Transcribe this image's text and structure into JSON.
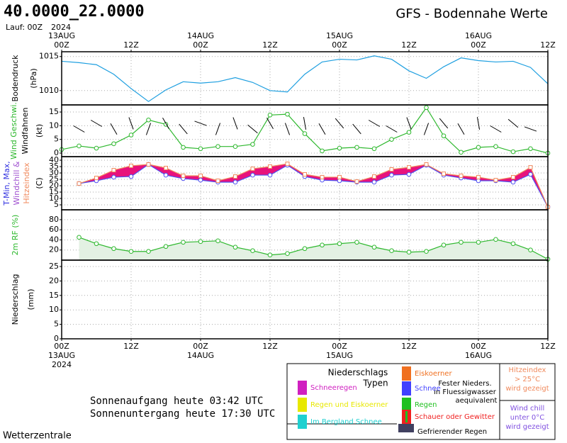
{
  "header": {
    "title": "40.0000_22.0000",
    "run": "Lauf: 00Z",
    "year": "2024",
    "subtitle": "GFS - Bodennahe Werte"
  },
  "chart_data": [
    {
      "type": "line",
      "ylabel": [
        "Bodendruck",
        "(hPa)"
      ],
      "x": [
        0,
        3,
        6,
        9,
        12,
        15,
        18,
        21,
        24,
        27,
        30,
        33,
        36,
        39,
        42,
        45,
        48,
        51,
        54,
        57,
        60,
        63,
        66,
        69,
        72,
        75,
        78,
        81,
        84
      ],
      "values": [
        1014.3,
        1014.1,
        1013.8,
        1012.4,
        1010.3,
        1008.4,
        1010.1,
        1011.3,
        1011.1,
        1011.3,
        1011.9,
        1011.2,
        1010.0,
        1009.8,
        1012.4,
        1014.2,
        1014.6,
        1014.5,
        1015.1,
        1014.6,
        1012.9,
        1011.8,
        1013.5,
        1014.8,
        1014.4,
        1014.2,
        1014.3,
        1013.4,
        1011.0
      ],
      "color": "#1e9fe0",
      "ylim": [
        1007.9,
        1015.7
      ],
      "yticks": [
        1010,
        1015
      ],
      "xlim": [
        0,
        84
      ],
      "xticks": [
        {
          "value": 0,
          "label": "00Z"
        },
        {
          "value": 12,
          "label": "12Z"
        },
        {
          "value": 24,
          "label": "00Z"
        },
        {
          "value": 36,
          "label": "12Z"
        },
        {
          "value": 48,
          "label": "00Z"
        },
        {
          "value": 60,
          "label": "12Z"
        },
        {
          "value": 72,
          "label": "00Z"
        },
        {
          "value": 84,
          "label": "12Z"
        }
      ],
      "xdates": [
        {
          "value": 0,
          "label": "13AUG"
        },
        {
          "value": 24,
          "label": "14AUG"
        },
        {
          "value": 48,
          "label": "15AUG"
        },
        {
          "value": 72,
          "label": "16AUG"
        }
      ],
      "grid": true
    },
    {
      "type": "line",
      "ylabel": [
        "Wind Geschwi.",
        "Windfahnen",
        "(kt)"
      ],
      "x": [
        0,
        3,
        6,
        9,
        12,
        15,
        18,
        21,
        24,
        27,
        30,
        33,
        36,
        39,
        42,
        45,
        48,
        51,
        54,
        57,
        60,
        63,
        66,
        69,
        72,
        75,
        78,
        81,
        84
      ],
      "values": [
        1.3,
        2.6,
        1.8,
        3.4,
        6.6,
        12.1,
        10.5,
        2.1,
        1.6,
        2.4,
        2.4,
        3.2,
        13.9,
        14.2,
        7.1,
        0.8,
        1.8,
        2.1,
        1.6,
        5.0,
        7.6,
        16.6,
        6.3,
        0.3,
        2.1,
        2.4,
        0.5,
        1.6,
        0
      ],
      "directions": [
        null,
        300,
        300,
        330,
        340,
        20,
        330,
        320,
        290,
        20,
        340,
        310,
        330,
        340,
        350,
        330,
        320,
        320,
        300,
        300,
        340,
        20,
        320,
        330,
        350,
        300,
        310,
        290,
        null
      ],
      "color": "#2eb82e",
      "ylim": [
        -1.3,
        17.6
      ],
      "yticks": [
        0,
        5,
        10,
        15
      ],
      "xlim": [
        0,
        84
      ],
      "grid": true
    },
    {
      "type": "line",
      "ylabel": [
        "T-Min, Max,",
        "Windchill &",
        "Hitzeindex",
        "(C)"
      ],
      "x": [
        0,
        3,
        6,
        9,
        12,
        15,
        18,
        21,
        24,
        27,
        30,
        33,
        36,
        39,
        42,
        45,
        48,
        51,
        54,
        57,
        60,
        63,
        66,
        69,
        72,
        75,
        78,
        81,
        84
      ],
      "series": [
        {
          "color": "#5050f0",
          "values": [
            null,
            21.7,
            23.9,
            26.7,
            27.2,
            36.7,
            28.3,
            25.6,
            24.4,
            22.8,
            22.8,
            28.3,
            28.3,
            36.1,
            27.2,
            24.4,
            23.9,
            22.8,
            22.8,
            28.3,
            28.9,
            36.1,
            28.3,
            26.1,
            23.9,
            23.9,
            22.8,
            28.9,
            3.3
          ]
        },
        {
          "color": "#f08a5d",
          "values": [
            null,
            21.7,
            26.1,
            32.2,
            35.6,
            36.7,
            33.9,
            27.8,
            27.8,
            23.9,
            27.2,
            33.3,
            35.0,
            37.2,
            28.9,
            26.7,
            26.7,
            23.3,
            27.2,
            32.8,
            34.4,
            36.7,
            29.4,
            27.8,
            26.7,
            24.4,
            26.7,
            34.4,
            3.3
          ]
        }
      ],
      "fill_color": "#e8127c",
      "ylim": [
        1.1,
        42.8
      ],
      "yticks": [
        5,
        10,
        15,
        20,
        25,
        30,
        35,
        40
      ],
      "xlim": [
        0,
        84
      ],
      "grid": true
    },
    {
      "type": "area",
      "ylabel": [
        "2m RF (%)"
      ],
      "x": [
        0,
        3,
        6,
        9,
        12,
        15,
        18,
        21,
        24,
        27,
        30,
        33,
        36,
        39,
        42,
        45,
        48,
        51,
        54,
        57,
        60,
        63,
        66,
        69,
        72,
        75,
        78,
        81,
        84
      ],
      "values": [
        null,
        45.1,
        32.6,
        22.8,
        17.2,
        17.2,
        27,
        35.3,
        36.7,
        38.1,
        25.6,
        18.6,
        10.2,
        13,
        22.8,
        29.8,
        32.6,
        35.3,
        25.6,
        18.6,
        15.8,
        17.2,
        29.8,
        35.3,
        35.3,
        40.9,
        32.6,
        20,
        1.9
      ],
      "color": "#2eb82e",
      "fill_color": "#e3f1e3",
      "ylim": [
        0,
        99.5
      ],
      "yticks": [
        20,
        40,
        60,
        80
      ],
      "xlim": [
        0,
        84
      ],
      "grid": true
    },
    {
      "type": "bar",
      "ylabel": [
        "Niederschlag",
        "(mm)"
      ],
      "ylim": [
        0,
        27.2
      ],
      "yticks": [
        0,
        5,
        10,
        15,
        20,
        25
      ],
      "xlim": [
        0,
        84
      ],
      "xticks": [
        {
          "value": 0,
          "label": "00Z"
        },
        {
          "value": 12,
          "label": "12Z"
        },
        {
          "value": 24,
          "label": "00Z"
        },
        {
          "value": 36,
          "label": "12Z"
        },
        {
          "value": 48,
          "label": "00Z"
        },
        {
          "value": 60,
          "label": "12Z"
        },
        {
          "value": 72,
          "label": "00Z"
        },
        {
          "value": 84,
          "label": "12Z"
        }
      ],
      "xdates": [
        {
          "value": 0,
          "label": "13AUG"
        },
        {
          "value": 24,
          "label": "14AUG"
        },
        {
          "value": 48,
          "label": "15AUG"
        },
        {
          "value": 72,
          "label": "16AUG"
        }
      ],
      "year": "2024",
      "grid": true
    }
  ],
  "sun": [
    "Sonnenaufgang heute 03:42 UTC",
    "Sonnenuntergang heute 17:30 UTC"
  ],
  "legend": {
    "title": [
      "Niederschlags",
      "Typen"
    ],
    "items": [
      {
        "label": "Schneeregen",
        "color": "#d020c0"
      },
      {
        "label": "Regen und Eiskoerner",
        "color": "#e8e800"
      },
      {
        "label": "Im Bergland Schnee",
        "color": "#20d0d0"
      },
      {
        "label": "Eiskoerner",
        "color": "#f07020"
      },
      {
        "label": "Schnee",
        "color": "#4040ff"
      },
      {
        "label": "Regen",
        "color": "#20c020"
      },
      {
        "label": "Schauer oder Gewitter",
        "color": "#f02020"
      },
      {
        "label": "Gefrierender Regen",
        "color": "#404060"
      }
    ],
    "note": [
      "Fester Nieders.",
      "in Fluessigwasser",
      "aequivalent"
    ],
    "heat_note": [
      "Hitzeindex",
      "> 25°C",
      "wird gezeigt"
    ],
    "chill_note": [
      "Wind chill",
      "unter 0°C",
      "wird gezeigt"
    ]
  },
  "footer": "Wetterzentrale"
}
